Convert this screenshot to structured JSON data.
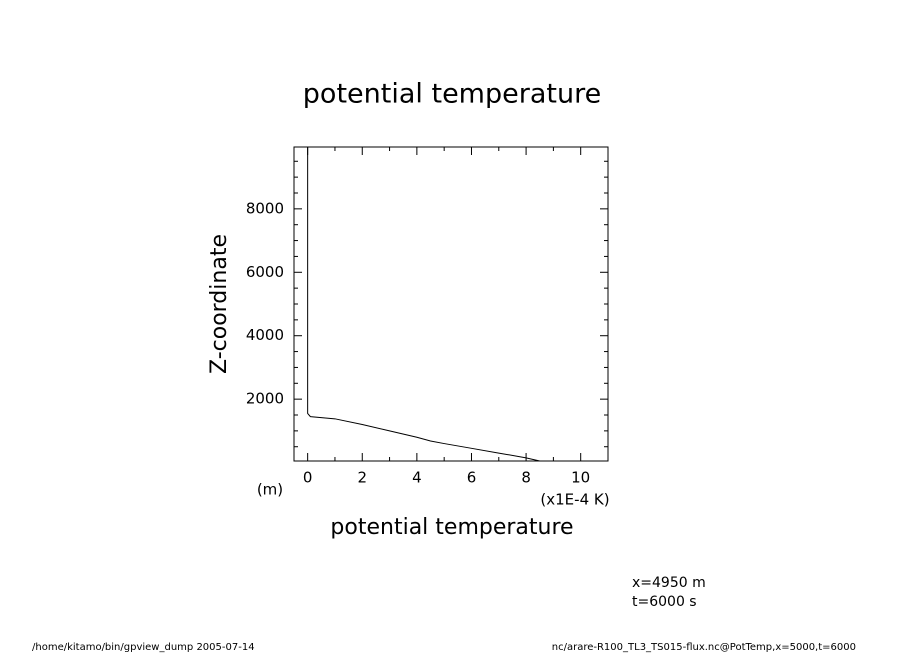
{
  "chart_data": {
    "type": "line",
    "title": "potential temperature",
    "x_label": "potential temperature",
    "x_unit": "(x1E-4 K)",
    "y_label": "Z-coordinate",
    "y_unit": "(m)",
    "annotations": [
      "x=4950  m",
      "t=6000  s"
    ],
    "footer_left": "/home/kitamo/bin/gpview_dump  2005-07-14",
    "footer_right": "nc/arare-R100_TL3_TS015-flux.nc@PotTemp,x=5000,t=6000",
    "x": [
      0,
      0,
      0.1,
      1,
      2,
      3,
      4,
      4.5,
      5,
      6,
      7,
      8,
      8.5
    ],
    "values": [
      9950,
      1550,
      1450,
      1380,
      1200,
      1000,
      800,
      680,
      600,
      450,
      300,
      150,
      50
    ],
    "color": "#000000",
    "xlim": [
      -0.5,
      11
    ],
    "xticks": [
      0,
      2,
      4,
      6,
      8,
      10
    ],
    "xminorticks": [
      1,
      3,
      5,
      7,
      9
    ],
    "ylim": [
      50,
      9950
    ],
    "yticks": [
      2000,
      4000,
      6000,
      8000
    ],
    "yminorticks": [
      500,
      1000,
      1500,
      2500,
      3000,
      3500,
      4500,
      5000,
      5500,
      6500,
      7000,
      7500,
      8500,
      9000,
      9500
    ]
  }
}
